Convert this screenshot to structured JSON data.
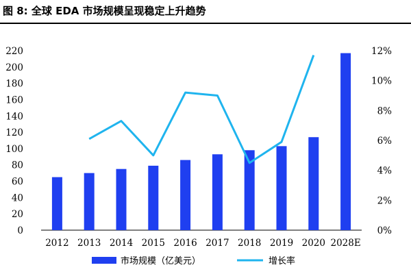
{
  "title": "图 8: 全球 EDA 市场规模呈现稳定上升趋势",
  "chart_data": {
    "type": "bar",
    "title": "图 8: 全球 EDA 市场规模呈现稳定上升趋势",
    "categories": [
      "2012",
      "2013",
      "2014",
      "2015",
      "2016",
      "2017",
      "2018",
      "2019",
      "2020",
      "2028E"
    ],
    "series": [
      {
        "name": "市场规模（亿美元）",
        "type": "bar",
        "axis": "left",
        "color": "#1f3ff0",
        "values": [
          65,
          70,
          75,
          79,
          86,
          93,
          98,
          103,
          114,
          217
        ]
      },
      {
        "name": "增长率",
        "type": "line",
        "axis": "right",
        "color": "#1fb4ee",
        "values": [
          null,
          6.1,
          7.3,
          5.0,
          9.2,
          9.0,
          4.5,
          5.9,
          11.7,
          null
        ]
      }
    ],
    "y_left": {
      "min": 0,
      "max": 220,
      "step": 20,
      "ticks": [
        "0",
        "20",
        "40",
        "60",
        "80",
        "100",
        "120",
        "140",
        "160",
        "180",
        "200",
        "220"
      ]
    },
    "y_right": {
      "min": 0,
      "max": 12,
      "step": 2,
      "ticks": [
        "0%",
        "2%",
        "4%",
        "6%",
        "8%",
        "10%",
        "12%"
      ]
    },
    "grid": false,
    "legend_position": "bottom"
  }
}
